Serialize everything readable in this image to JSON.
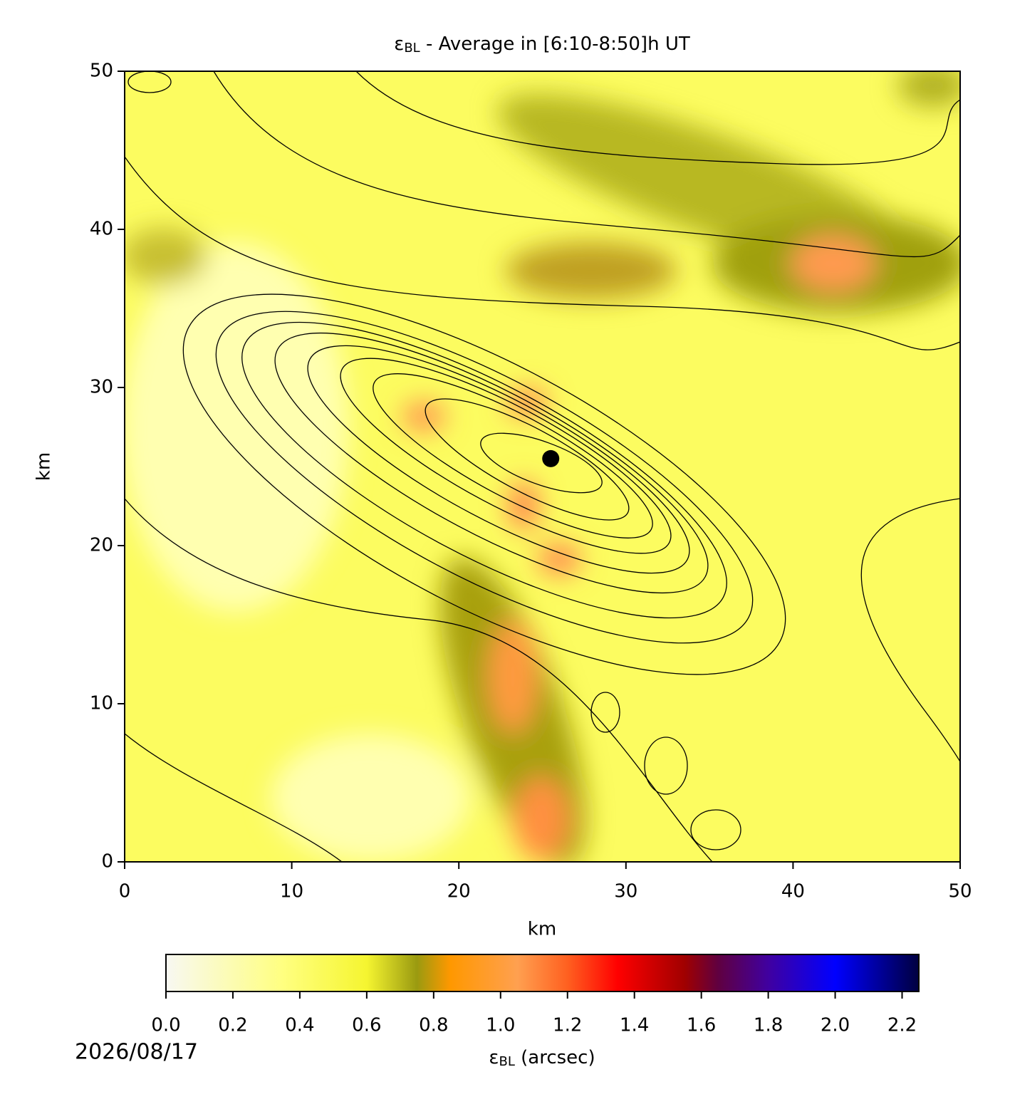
{
  "chart_data": {
    "type": "contour",
    "title": {
      "symbol": "ε",
      "subscript": "BL",
      "text": " - Average in [6:10-8:50]h UT"
    },
    "x_label": "km",
    "y_label": "km",
    "xlim": [
      0,
      50
    ],
    "ylim": [
      0,
      50
    ],
    "xticks": [
      0,
      10,
      20,
      30,
      40,
      50
    ],
    "yticks": [
      0,
      10,
      20,
      30,
      40,
      50
    ],
    "points": {
      "x": [
        25.5
      ],
      "y": [
        25.5
      ],
      "color": "#000000"
    },
    "colorbar": {
      "label": {
        "symbol": "ε",
        "subscript": "BL",
        "text": " (arcsec)"
      },
      "lim": [
        0,
        2.25
      ],
      "ticks": [
        {
          "value": 0,
          "label": "0.0"
        },
        {
          "value": 0.2,
          "label": "0.2"
        },
        {
          "value": 0.4,
          "label": "0.4"
        },
        {
          "value": 0.6,
          "label": "0.6"
        },
        {
          "value": 0.8,
          "label": "0.8"
        },
        {
          "value": 1,
          "label": "1.0"
        },
        {
          "value": 1.2,
          "label": "1.2"
        },
        {
          "value": 1.4,
          "label": "1.4"
        },
        {
          "value": 1.6,
          "label": "1.6"
        },
        {
          "value": 1.8,
          "label": "1.8"
        },
        {
          "value": 2,
          "label": "2.0"
        },
        {
          "value": 2.2,
          "label": "2.2"
        }
      ],
      "colormap": [
        {
          "value": 0,
          "color": "#f8f8f2"
        },
        {
          "value": 0.35,
          "color": "#ffff80"
        },
        {
          "value": 0.6,
          "color": "#f5f530"
        },
        {
          "value": 0.75,
          "color": "#9a9a10"
        },
        {
          "value": 0.85,
          "color": "#ff9800"
        },
        {
          "value": 1.05,
          "color": "#ffa050"
        },
        {
          "value": 1.2,
          "color": "#ff6020"
        },
        {
          "value": 1.35,
          "color": "#ff0000"
        },
        {
          "value": 1.55,
          "color": "#a00000"
        },
        {
          "value": 1.65,
          "color": "#600040"
        },
        {
          "value": 1.8,
          "color": "#4000a0"
        },
        {
          "value": 2.0,
          "color": "#0000ff"
        },
        {
          "value": 2.25,
          "color": "#000040"
        }
      ]
    },
    "date": "2026/08/17"
  }
}
